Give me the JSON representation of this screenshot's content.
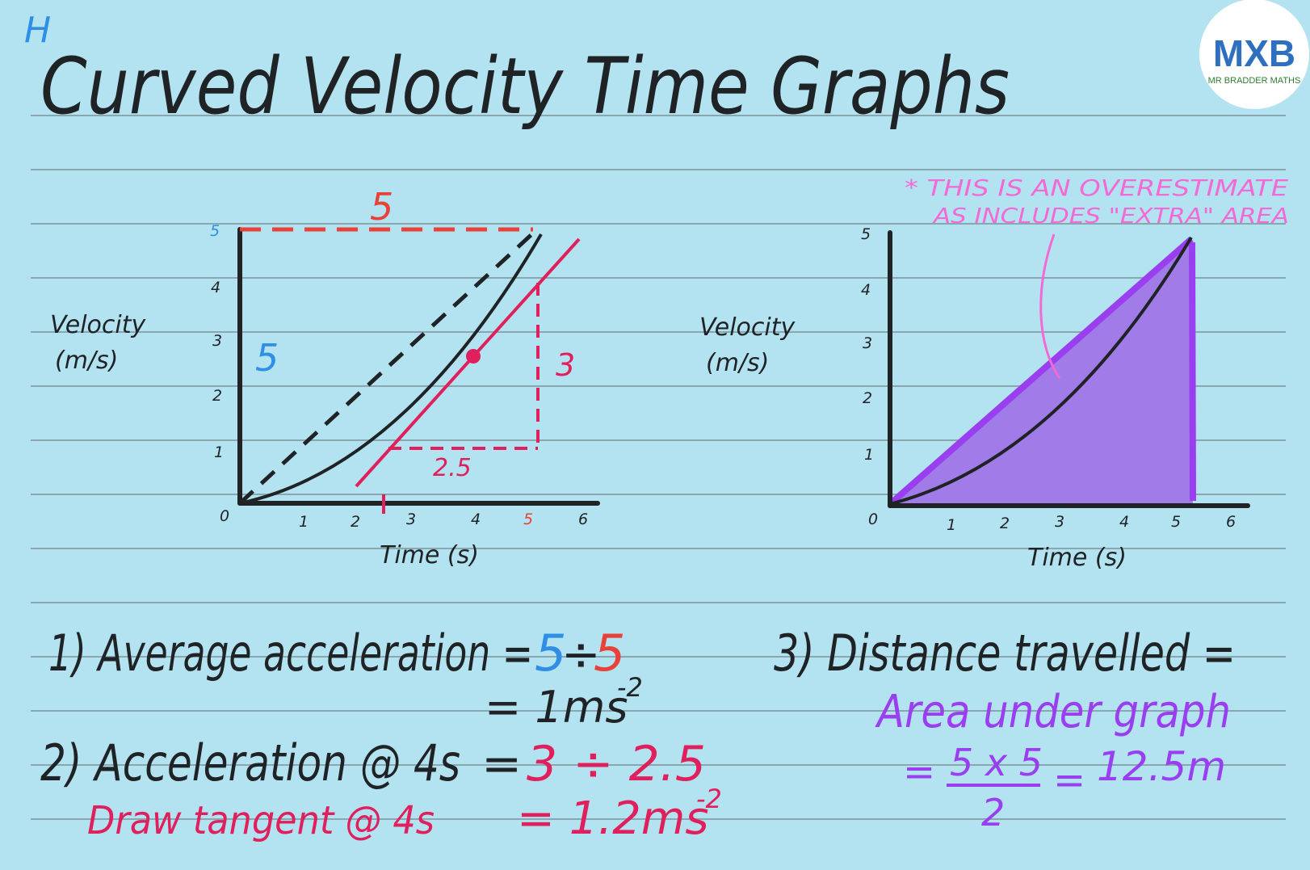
{
  "header": {
    "level": "H",
    "title": "Curved Velocity Time Graphs"
  },
  "logo": {
    "mark": "MXB",
    "subtitle": "MR BRADDER MATHS"
  },
  "graph_left": {
    "ylabel_line1": "Velocity",
    "ylabel_line2": "(m/s)",
    "xlabel": "Time (s)",
    "x_ticks": [
      "0",
      "1",
      "2",
      "3",
      "4",
      "5",
      "6"
    ],
    "y_ticks": [
      "1",
      "2",
      "3",
      "4",
      "5"
    ],
    "run_label": "5",
    "rise_label": "5",
    "tangent_rise": "3",
    "tangent_run": "2.5"
  },
  "graph_right": {
    "ylabel_line1": "Velocity",
    "ylabel_line2": "(m/s)",
    "xlabel": "Time (s)",
    "x_ticks": [
      "0",
      "1",
      "2",
      "3",
      "4",
      "5",
      "6"
    ],
    "y_ticks": [
      "1",
      "2",
      "3",
      "4",
      "5"
    ],
    "note_line1": "* THIS IS AN OVERESTIMATE",
    "note_line2": "AS INCLUDES \"EXTRA\" AREA"
  },
  "working": {
    "avg_label": "1) Average acceleration =",
    "avg_num": "5",
    "avg_div": "÷",
    "avg_den": "5",
    "avg_result": "= 1ms",
    "avg_exp": "-2",
    "acc_label": "2) Acceleration @ 4s",
    "acc_eq": "=",
    "acc_calc": "3 ÷ 2.5",
    "acc_note": "Draw tangent @ 4s",
    "acc_result": "= 1.2ms",
    "acc_exp": "-2",
    "dist_label": "3) Distance travelled =",
    "dist_area": "Area under graph",
    "dist_eq1": "=",
    "dist_frac_num": "5 x 5",
    "dist_frac_den": "2",
    "dist_eq2": "=",
    "dist_result": "12.5m"
  },
  "colors": {
    "background": "#b3e3f1",
    "ink": "#1f2326",
    "blue": "#2f8fe6",
    "red": "#e8413a",
    "crimson": "#e0205c",
    "purple": "#9a3ff0",
    "purple_fill": "#a17be8",
    "pink": "#f36ad6"
  }
}
